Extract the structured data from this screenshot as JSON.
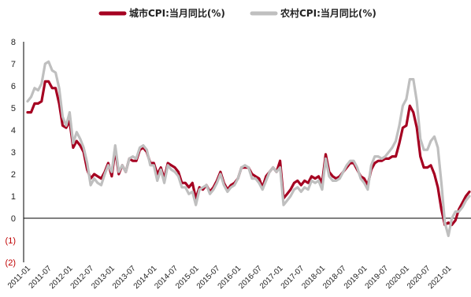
{
  "chart_data": {
    "type": "line",
    "title": "",
    "xlabel": "",
    "ylabel": "",
    "ylim": [
      -2,
      8
    ],
    "y_ticks": [
      8,
      7,
      6,
      5,
      4,
      3,
      2,
      1,
      0,
      -1,
      -2
    ],
    "y_tick_labels": [
      "8",
      "7",
      "6",
      "5",
      "4",
      "3",
      "2",
      "1",
      "0",
      "(1)",
      "(2)"
    ],
    "x_start": "2011-01",
    "x_end": "2021-06",
    "x_tick_labels": [
      "2011-01",
      "2011-07",
      "2012-01",
      "2012-07",
      "2013-01",
      "2013-07",
      "2014-01",
      "2014-07",
      "2015-01",
      "2015-07",
      "2016-01",
      "2016-07",
      "2017-01",
      "2017-07",
      "2018-01",
      "2018-07",
      "2019-01",
      "2019-07",
      "2020-01",
      "2020-07",
      "2021-01"
    ],
    "legend_position": "top",
    "grid": false,
    "series": [
      {
        "name": "城市CPI:当月同比(%)",
        "color": "#a50021",
        "values": [
          4.8,
          4.8,
          5.2,
          5.2,
          5.3,
          6.2,
          6.2,
          5.9,
          5.9,
          5.2,
          4.2,
          4.1,
          4.4,
          3.2,
          3.5,
          3.3,
          3.0,
          2.2,
          1.8,
          2.0,
          1.9,
          1.8,
          2.1,
          2.5,
          1.9,
          3.1,
          2.0,
          2.4,
          2.1,
          2.7,
          2.6,
          2.6,
          3.1,
          3.2,
          3.0,
          2.5,
          2.5,
          2.0,
          2.3,
          1.8,
          2.5,
          2.4,
          2.3,
          2.1,
          1.6,
          1.6,
          1.4,
          1.6,
          0.9,
          1.4,
          1.3,
          1.5,
          1.2,
          1.4,
          1.7,
          2.1,
          1.6,
          1.3,
          1.5,
          1.6,
          1.8,
          2.3,
          2.3,
          2.3,
          2.0,
          1.9,
          1.8,
          1.4,
          1.9,
          2.1,
          2.3,
          2.1,
          2.6,
          0.9,
          1.1,
          1.3,
          1.6,
          1.7,
          1.5,
          1.7,
          1.6,
          1.9,
          1.8,
          1.9,
          1.6,
          2.9,
          2.1,
          1.9,
          1.8,
          1.9,
          2.1,
          2.3,
          2.5,
          2.5,
          2.2,
          1.9,
          1.8,
          1.5,
          2.2,
          2.5,
          2.6,
          2.6,
          2.7,
          2.7,
          2.8,
          2.8,
          3.4,
          4.1,
          4.2,
          5.1,
          4.8,
          4.1,
          2.8,
          2.3,
          2.3,
          2.4,
          2.0,
          1.4,
          0.4,
          -0.3,
          -0.2,
          -0.3,
          -0.1,
          0.4,
          0.7,
          1.0,
          1.2
        ]
      },
      {
        "name": "农村CPI:当月同比(%)",
        "color": "#bfbfbf",
        "values": [
          5.3,
          5.5,
          5.9,
          5.8,
          6.1,
          7.0,
          7.1,
          6.7,
          6.6,
          5.9,
          4.6,
          4.2,
          4.8,
          3.4,
          3.9,
          3.6,
          3.2,
          2.5,
          1.5,
          1.8,
          1.6,
          1.5,
          2.0,
          2.4,
          2.1,
          3.3,
          2.1,
          2.4,
          2.1,
          2.7,
          2.8,
          2.7,
          3.2,
          3.3,
          3.1,
          2.4,
          2.4,
          1.7,
          2.2,
          1.6,
          2.4,
          2.2,
          2.1,
          1.9,
          1.4,
          1.4,
          1.1,
          1.2,
          0.6,
          1.3,
          1.4,
          1.5,
          1.1,
          1.3,
          1.6,
          2.0,
          1.5,
          1.2,
          1.4,
          1.5,
          1.8,
          2.3,
          2.4,
          2.3,
          1.8,
          1.8,
          1.6,
          1.3,
          1.7,
          2.1,
          2.3,
          2.1,
          2.3,
          0.6,
          0.8,
          1.0,
          1.3,
          1.4,
          1.2,
          1.4,
          1.3,
          1.7,
          1.6,
          1.7,
          1.3,
          2.7,
          1.9,
          1.7,
          1.7,
          1.8,
          2.1,
          2.4,
          2.6,
          2.6,
          2.3,
          1.8,
          1.6,
          1.3,
          2.4,
          2.8,
          2.8,
          2.7,
          2.8,
          3.0,
          3.2,
          3.5,
          4.2,
          5.1,
          5.4,
          6.3,
          6.3,
          5.3,
          3.6,
          3.1,
          3.1,
          3.5,
          3.7,
          3.2,
          1.6,
          -0.2,
          -0.8,
          0.0,
          0.3,
          0.3,
          0.5,
          0.8,
          1.0
        ]
      }
    ]
  }
}
